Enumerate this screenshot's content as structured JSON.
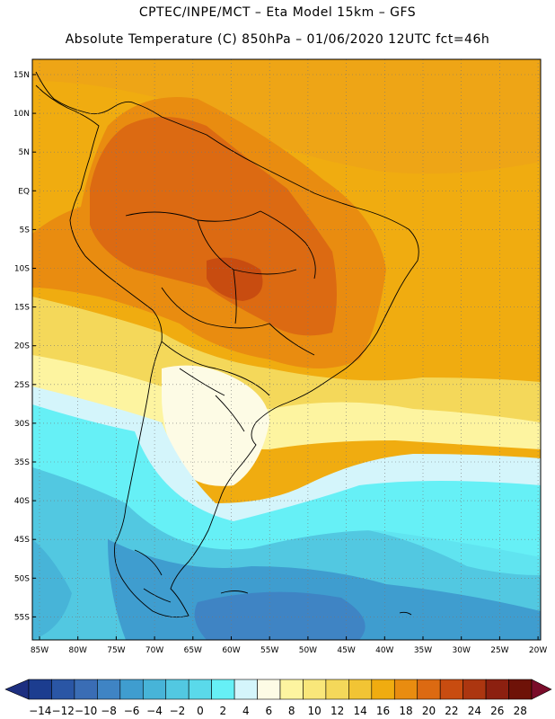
{
  "title_line1": "CPTEC/INPE/MCT  –  Eta Model 15km  –  GFS",
  "title_line2": "Absolute Temperature (C) 850hPa – 01/06/2020 12UTC fct=46h",
  "lat_labels": [
    "15N",
    "10N",
    "5N",
    "EQ",
    "5S",
    "10S",
    "15S",
    "20S",
    "25S",
    "30S",
    "35S",
    "40S",
    "45S",
    "50S",
    "55S"
  ],
  "lon_labels": [
    "85W",
    "80W",
    "75W",
    "70W",
    "65W",
    "60W",
    "55W",
    "50W",
    "45W",
    "40W",
    "35W",
    "30W",
    "25W",
    "20W"
  ],
  "colorbar": {
    "labels": [
      "−14",
      "−12",
      "−10",
      "−8",
      "−6",
      "−4",
      "−2",
      "0",
      "2",
      "4",
      "6",
      "8",
      "10",
      "12",
      "14",
      "16",
      "18",
      "20",
      "22",
      "24",
      "26",
      "28"
    ],
    "colors": [
      "#1c3d8f",
      "#2a56a5",
      "#3a6db5",
      "#3f84c4",
      "#3f9dcf",
      "#47b4d8",
      "#52c8e1",
      "#5ad9ea",
      "#66f0f6",
      "#d4f5fb",
      "#fdfbe5",
      "#fdf4a0",
      "#f9e77a",
      "#f4d85a",
      "#f2c434",
      "#f0ac10",
      "#e98c10",
      "#dc6a12",
      "#c84c10",
      "#ac3610",
      "#8c2010",
      "#6e1208"
    ],
    "left_arrow_color": "#1d2f80",
    "right_arrow_color": "#7a0c2a"
  },
  "colors": {
    "ocean_warm": "#f0ac10",
    "land_hot": "#dc6a12",
    "cold_south": "#3f9dcf"
  }
}
